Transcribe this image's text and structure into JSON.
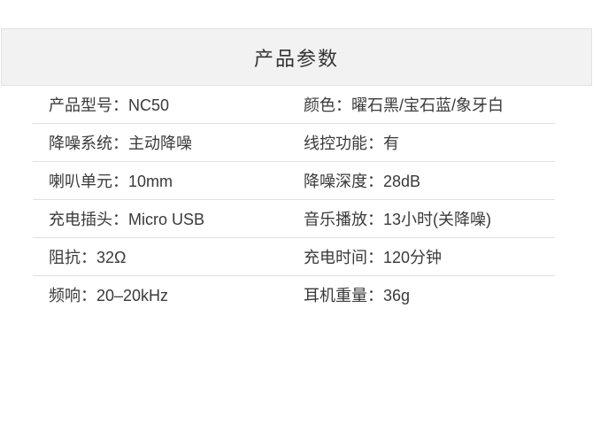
{
  "header": {
    "title": "产品参数",
    "bg_color": "#f2f2f2",
    "border_color": "#e2e2e2"
  },
  "table": {
    "colon": "：",
    "divider_color": "#e0e0e0",
    "rows": [
      {
        "left": {
          "label": "产品型号",
          "value": "NC50"
        },
        "right": {
          "label": "颜色",
          "value": "曜石黑/宝石蓝/象牙白"
        }
      },
      {
        "left": {
          "label": "降噪系统",
          "value": "主动降噪"
        },
        "right": {
          "label": "线控功能",
          "value": "有"
        }
      },
      {
        "left": {
          "label": "喇叭单元",
          "value": "10mm"
        },
        "right": {
          "label": "降噪深度",
          "value": "28dB"
        }
      },
      {
        "left": {
          "label": "充电插头",
          "value": "Micro USB"
        },
        "right": {
          "label": "音乐播放",
          "value": "13小时(关降噪)"
        }
      },
      {
        "left": {
          "label": "阻抗",
          "value": "32Ω"
        },
        "right": {
          "label": "充电时间",
          "value": "120分钟"
        }
      },
      {
        "left": {
          "label": "频响",
          "value": "20–20kHz"
        },
        "right": {
          "label": "耳机重量",
          "value": "36g"
        }
      }
    ]
  }
}
